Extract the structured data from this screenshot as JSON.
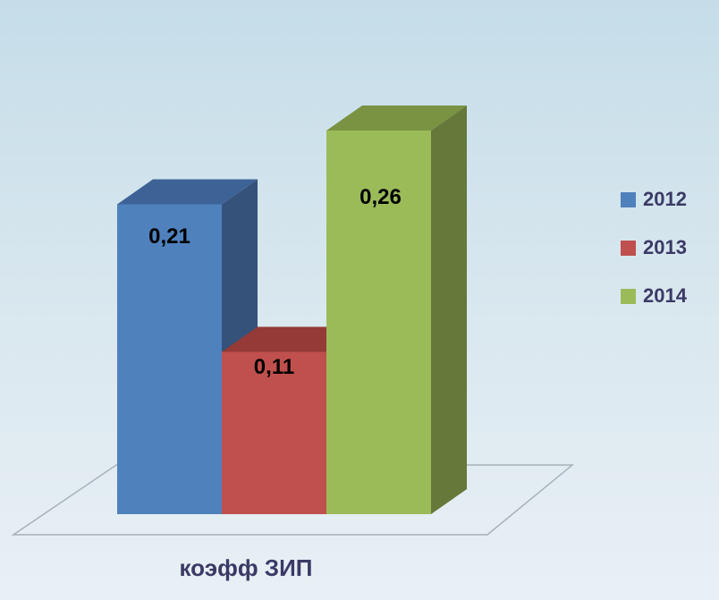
{
  "chart_data": {
    "type": "bar",
    "categories": [
      "коэфф ЗИП"
    ],
    "series": [
      {
        "name": "2012",
        "values": [
          0.21
        ],
        "label": "0,21",
        "color": "#4f81bd",
        "side": "#34527a",
        "top": "#3d6396"
      },
      {
        "name": "2013",
        "values": [
          0.11
        ],
        "label": "0,11",
        "color": "#c0504d",
        "side": "#8a3230",
        "top": "#953a37"
      },
      {
        "name": "2014",
        "values": [
          0.26
        ],
        "label": "0,26",
        "color": "#9bbb59",
        "side": "#66783a",
        "top": "#7a9343"
      }
    ],
    "legend_position": "right",
    "grid": false,
    "style": "3d-clustered-column"
  }
}
